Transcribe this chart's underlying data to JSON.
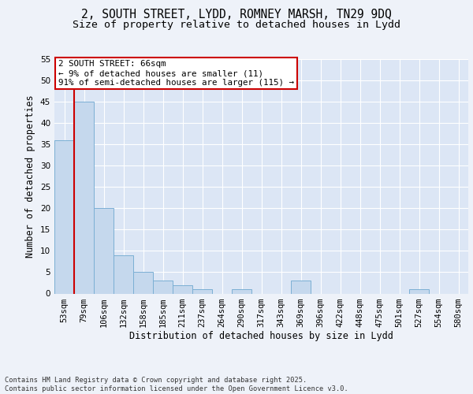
{
  "title1": "2, SOUTH STREET, LYDD, ROMNEY MARSH, TN29 9DQ",
  "title2": "Size of property relative to detached houses in Lydd",
  "xlabel": "Distribution of detached houses by size in Lydd",
  "ylabel": "Number of detached properties",
  "categories": [
    "53sqm",
    "79sqm",
    "106sqm",
    "132sqm",
    "158sqm",
    "185sqm",
    "211sqm",
    "237sqm",
    "264sqm",
    "290sqm",
    "317sqm",
    "343sqm",
    "369sqm",
    "396sqm",
    "422sqm",
    "448sqm",
    "475sqm",
    "501sqm",
    "527sqm",
    "554sqm",
    "580sqm"
  ],
  "values": [
    36,
    45,
    20,
    9,
    5,
    3,
    2,
    1,
    0,
    1,
    0,
    0,
    3,
    0,
    0,
    0,
    0,
    0,
    1,
    0,
    0
  ],
  "bar_color": "#c5d8ed",
  "bar_edge_color": "#7bafd4",
  "highlight_line_color": "#cc0000",
  "highlight_bar_index": 1,
  "annotation_title": "2 SOUTH STREET: 66sqm",
  "annotation_line1": "← 9% of detached houses are smaller (11)",
  "annotation_line2": "91% of semi-detached houses are larger (115) →",
  "annotation_box_color": "#ffffff",
  "annotation_box_edge": "#cc0000",
  "ylim": [
    0,
    55
  ],
  "yticks": [
    0,
    5,
    10,
    15,
    20,
    25,
    30,
    35,
    40,
    45,
    50,
    55
  ],
  "footer": "Contains HM Land Registry data © Crown copyright and database right 2025.\nContains public sector information licensed under the Open Government Licence v3.0.",
  "bg_color": "#eef2f9",
  "plot_bg_color": "#dce6f5",
  "grid_color": "#ffffff",
  "title_fontsize": 10.5,
  "subtitle_fontsize": 9.5,
  "axis_label_fontsize": 8.5,
  "tick_fontsize": 7.5,
  "annotation_fontsize": 7.8,
  "footer_fontsize": 6.2
}
